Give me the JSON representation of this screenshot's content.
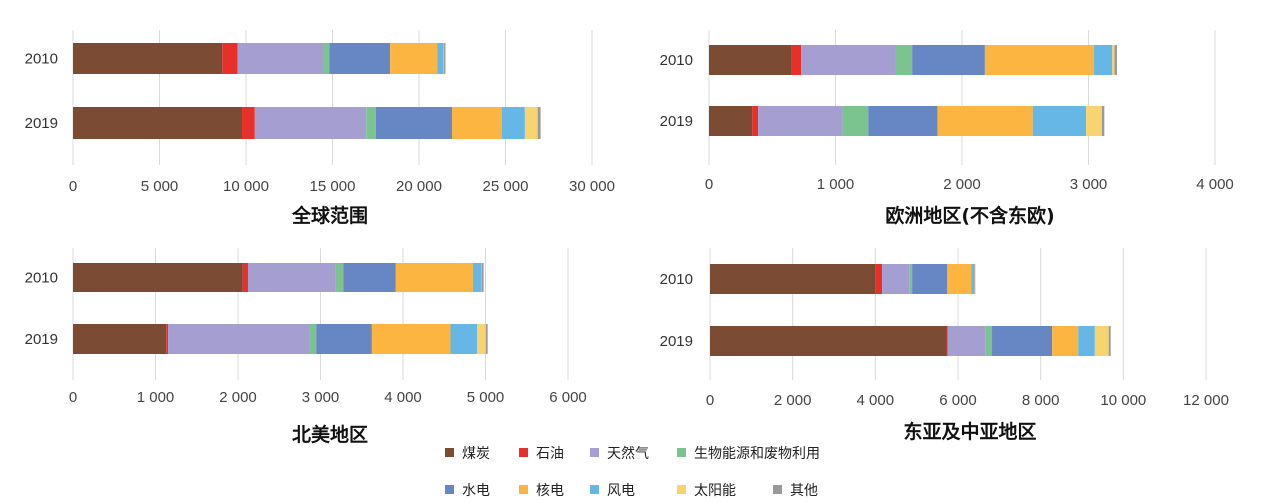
{
  "legend": [
    {
      "key": "coal",
      "label": "煤炭",
      "color": "#7b4b34"
    },
    {
      "key": "oil",
      "label": "石油",
      "color": "#e8302b"
    },
    {
      "key": "gas",
      "label": "天然气",
      "color": "#a59fd1"
    },
    {
      "key": "bio",
      "label": "生物能源和废物利用",
      "color": "#7cc48f"
    },
    {
      "key": "hydro",
      "label": "水电",
      "color": "#6787c4"
    },
    {
      "key": "nuclear",
      "label": "核电",
      "color": "#fbb540"
    },
    {
      "key": "wind",
      "label": "风电",
      "color": "#66b7e6"
    },
    {
      "key": "solar",
      "label": "太阳能",
      "color": "#f7d46f"
    },
    {
      "key": "other",
      "label": "其他",
      "color": "#999999"
    }
  ],
  "chart_data": [
    {
      "type": "bar",
      "orientation": "horizontal",
      "stacked": true,
      "title": "全球范围",
      "categories": [
        "2010",
        "2019"
      ],
      "xlim": [
        0,
        30000
      ],
      "ticks": [
        "0",
        "5 000",
        "10 000",
        "15 000",
        "20 000",
        "25 000",
        "30 000"
      ],
      "tick_values": [
        0,
        5000,
        10000,
        15000,
        20000,
        25000,
        30000
      ],
      "grid": true,
      "series": [
        {
          "name": "煤炭",
          "values": [
            8630,
            9770
          ]
        },
        {
          "name": "石油",
          "values": [
            890,
            740
          ]
        },
        {
          "name": "天然气",
          "values": [
            4930,
            6440
          ]
        },
        {
          "name": "生物能源和废物利用",
          "values": [
            370,
            560
          ]
        },
        {
          "name": "水电",
          "values": [
            3510,
            4400
          ]
        },
        {
          "name": "核电",
          "values": [
            2720,
            2870
          ]
        },
        {
          "name": "风电",
          "values": [
            370,
            1340
          ]
        },
        {
          "name": "太阳能",
          "values": [
            30,
            740
          ]
        },
        {
          "name": "其他",
          "values": [
            80,
            170
          ]
        }
      ]
    },
    {
      "type": "bar",
      "orientation": "horizontal",
      "stacked": true,
      "title": "欧洲地区(不含东欧)",
      "categories": [
        "2010",
        "2019"
      ],
      "xlim": [
        0,
        4000
      ],
      "ticks": [
        "0",
        "1 000",
        "2 000",
        "3 000",
        "4 000"
      ],
      "tick_values": [
        0,
        1000,
        2000,
        3000,
        4000
      ],
      "grid": true,
      "series": [
        {
          "name": "煤炭",
          "values": [
            653,
            341
          ]
        },
        {
          "name": "石油",
          "values": [
            75,
            47
          ]
        },
        {
          "name": "天然气",
          "values": [
            750,
            668
          ]
        },
        {
          "name": "生物能源和废物利用",
          "values": [
            128,
            203
          ]
        },
        {
          "name": "水电",
          "values": [
            575,
            547
          ]
        },
        {
          "name": "核电",
          "values": [
            863,
            753
          ]
        },
        {
          "name": "风电",
          "values": [
            144,
            422
          ]
        },
        {
          "name": "太阳能",
          "values": [
            18,
            125
          ]
        },
        {
          "name": "其他",
          "values": [
            19,
            19
          ]
        }
      ]
    },
    {
      "type": "bar",
      "orientation": "horizontal",
      "stacked": true,
      "title": "北美地区",
      "categories": [
        "2010",
        "2019"
      ],
      "xlim": [
        0,
        6000
      ],
      "ticks": [
        "0",
        "1 000",
        "2 000",
        "3 000",
        "4 000",
        "5 000",
        "6 000"
      ],
      "tick_values": [
        0,
        1000,
        2000,
        3000,
        4000,
        5000,
        6000
      ],
      "grid": true,
      "series": [
        {
          "name": "煤炭",
          "values": [
            2056,
            1130
          ]
        },
        {
          "name": "石油",
          "values": [
            65,
            22
          ]
        },
        {
          "name": "天然气",
          "values": [
            1065,
            1709
          ]
        },
        {
          "name": "生物能源和废物利用",
          "values": [
            91,
            87
          ]
        },
        {
          "name": "水电",
          "values": [
            636,
            675
          ]
        },
        {
          "name": "核电",
          "values": [
            935,
            953
          ]
        },
        {
          "name": "风电",
          "values": [
            104,
            324
          ]
        },
        {
          "name": "太阳能",
          "values": [
            5,
            104
          ]
        },
        {
          "name": "其他",
          "values": [
            20,
            22
          ]
        }
      ]
    },
    {
      "type": "bar",
      "orientation": "horizontal",
      "stacked": true,
      "title": "东亚及中亚地区",
      "categories": [
        "2010",
        "2019"
      ],
      "xlim": [
        0,
        12000
      ],
      "ticks": [
        "0",
        "2 000",
        "4 000",
        "6 000",
        "8 000",
        "10 000",
        "12 000"
      ],
      "tick_values": [
        0,
        2000,
        4000,
        6000,
        8000,
        10000,
        12000
      ],
      "grid": true,
      "series": [
        {
          "name": "煤炭",
          "values": [
            4000,
            5722
          ]
        },
        {
          "name": "石油",
          "values": [
            163,
            29
          ]
        },
        {
          "name": "天然气",
          "values": [
            670,
            919
          ]
        },
        {
          "name": "生物能源和废物利用",
          "values": [
            57,
            153
          ]
        },
        {
          "name": "水电",
          "values": [
            852,
            1455
          ]
        },
        {
          "name": "核电",
          "values": [
            583,
            631
          ]
        },
        {
          "name": "风电",
          "values": [
            67,
            402
          ]
        },
        {
          "name": "太阳能",
          "values": [
            5,
            335
          ]
        },
        {
          "name": "其他",
          "values": [
            20,
            48
          ]
        }
      ]
    }
  ]
}
